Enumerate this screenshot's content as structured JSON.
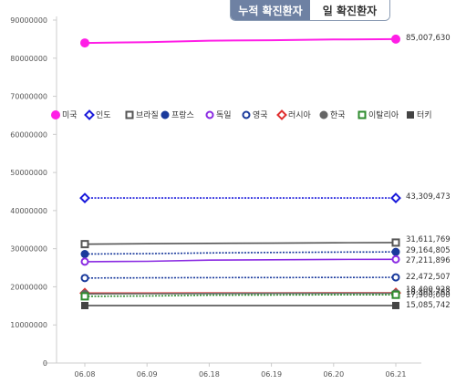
{
  "tabs": [
    {
      "label": "누적 확진환자",
      "active": true
    },
    {
      "label": "일 확진환자",
      "active": false
    }
  ],
  "chart_data": {
    "type": "line",
    "title": "",
    "xlabel": "",
    "ylabel": "",
    "categories": [
      "06.08",
      "06.09",
      "06.18",
      "06.19",
      "06.20",
      "06.21"
    ],
    "ylim": [
      0,
      90000000
    ],
    "yticks": [
      0,
      10000000,
      20000000,
      30000000,
      40000000,
      50000000,
      60000000,
      70000000,
      80000000,
      90000000
    ],
    "ytick_labels": [
      "0",
      "10000000",
      "20000000",
      "30000000",
      "40000000",
      "50000000",
      "60000000",
      "70000000",
      "80000000",
      "90000000"
    ],
    "grid": false,
    "legend_position": "middle-left",
    "series": [
      {
        "name": "미국",
        "marker": "circle-filled",
        "line": "solid",
        "color": "#ff1ee6",
        "values": [
          84000000,
          84200000,
          84600000,
          84700000,
          84900000,
          85007630
        ],
        "end_label": "85,007,630"
      },
      {
        "name": "인도",
        "marker": "diamond-open",
        "line": "dotted",
        "color": "#1a1adb",
        "values": [
          43300000,
          43300000,
          43305000,
          43306000,
          43307000,
          43309473
        ],
        "end_label": "43,309,473"
      },
      {
        "name": "브라질",
        "marker": "square-open",
        "line": "solid",
        "color": "#555555",
        "values": [
          31200000,
          31300000,
          31400000,
          31450000,
          31550000,
          31611769
        ],
        "end_label": "31,611,769"
      },
      {
        "name": "프랑스",
        "marker": "circle-filled",
        "line": "dotted",
        "color": "#1a3a9c",
        "values": [
          28600000,
          28700000,
          28900000,
          29000000,
          29100000,
          29164805
        ],
        "end_label": "29,164,805"
      },
      {
        "name": "독일",
        "marker": "circle-open",
        "line": "solid",
        "color": "#8a2be2",
        "values": [
          26600000,
          26700000,
          27000000,
          27100000,
          27200000,
          27211896
        ],
        "end_label": "27,211,896"
      },
      {
        "name": "영국",
        "marker": "circle-open",
        "line": "dotted",
        "color": "#1a3a9c",
        "values": [
          22300000,
          22350000,
          22400000,
          22430000,
          22460000,
          22472507
        ],
        "end_label": "22,472,507"
      },
      {
        "name": "러시아",
        "marker": "diamond-open",
        "line": "solid",
        "color": "#e03030",
        "values": [
          18350000,
          18360000,
          18380000,
          18390000,
          18395000,
          18400928
        ],
        "end_label": "18,400,928"
      },
      {
        "name": "한국",
        "marker": "circle-filled",
        "line": "solid",
        "color": "#666666",
        "values": [
          18150000,
          18200000,
          18250000,
          18280000,
          18300000,
          18305783
        ],
        "end_label": "18,305,783"
      },
      {
        "name": "이탈리아",
        "marker": "square-open",
        "line": "dotted",
        "color": "#2e8b2e",
        "values": [
          17500000,
          17600000,
          17800000,
          17850000,
          17900000,
          17900000
        ],
        "end_label": "17,900,000"
      },
      {
        "name": "터키",
        "marker": "square-filled",
        "line": "solid",
        "color": "#444444",
        "values": [
          15080000,
          15081000,
          15082000,
          15083000,
          15084000,
          15085742
        ],
        "end_label": "15,085,742"
      }
    ]
  }
}
